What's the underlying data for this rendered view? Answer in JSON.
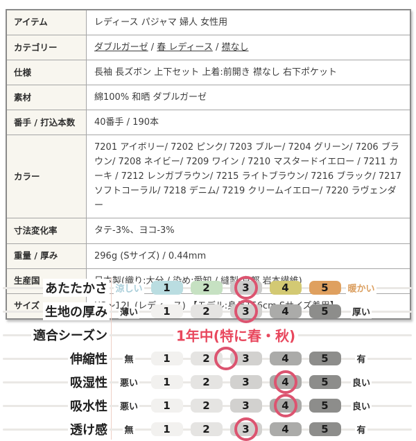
{
  "spec_table": {
    "rows": [
      {
        "label": "アイテム",
        "value": "レディース パジャマ 婦人 女性用"
      },
      {
        "label": "カテゴリー",
        "links": [
          "ダブルガーゼ",
          "春 レディース",
          "襟なし"
        ],
        "separator": " / "
      },
      {
        "label": "仕様",
        "value": "長袖 長ズボン 上下セット 上着:前開き 襟なし 右下ポケット"
      },
      {
        "label": "素材",
        "value": "綿100% 和晒 ダブルガーゼ"
      },
      {
        "label": "番手 / 打込本数",
        "value": "40番手 / 190本"
      },
      {
        "label": "カラー",
        "value": "7201 アイボリー/ 7202 ピンク/ 7203 ブルー/ 7204 グリーン/ 7206 ブラウン/ 7208 ネイビー/ 7209 ワイン / 7210 マスタードイエロー / 7211 カーキ / 7212 レンガブラウン/ 7215 ライトブラウン/ 7216 ブラック/ 7217 ソフトコーラル/ 7218 デニム/ 7219 クリームイエロー/ 7220 ラヴェンダー"
      },
      {
        "label": "寸法変化率",
        "value": "タテ-3%、ヨコ-3%"
      },
      {
        "label": "重量 / 厚み",
        "value": "296g (Sサイズ) / 0.44mm"
      },
      {
        "label": "生産国",
        "value": "日本製(織り:大分 / 染め:愛知 / 縫製:京都 岩本繊維)"
      },
      {
        "label": "サイズ",
        "value": "XS〜12L (レディース) 【モデル:身長156cm Sサイズ着用】"
      }
    ]
  },
  "chart_data": {
    "type": "rating-scale",
    "scale": [
      "1",
      "2",
      "3",
      "4",
      "5"
    ],
    "rows": [
      {
        "label": "あたたかさ",
        "left": "涼しい",
        "right": "暖かい",
        "left_color": "#a7cdd9",
        "right_color": "#db9f60",
        "palette": "warmth",
        "rating": 3
      },
      {
        "label": "生地の厚み",
        "left": "薄い",
        "right": "厚い",
        "palette": "gray",
        "rating": 3
      },
      {
        "label": "適合シーズン",
        "season_text": "1年中(特に春・秋)"
      },
      {
        "label": "伸縮性",
        "left": "無",
        "right": "有",
        "palette": "gray",
        "rating": 2.5
      },
      {
        "label": "吸湿性",
        "left": "悪い",
        "right": "良い",
        "palette": "gray",
        "rating": 4
      },
      {
        "label": "吸水性",
        "left": "悪い",
        "right": "良い",
        "palette": "gray",
        "rating": 4
      },
      {
        "label": "透け感",
        "left": "無",
        "right": "有",
        "palette": "gray",
        "rating": 3
      }
    ],
    "palettes": {
      "warmth": [
        "#badde1",
        "#c6e1c2",
        "#cccccb",
        "#d3c973",
        "#dfa05f"
      ],
      "gray": [
        "#f2f1ef",
        "#e5e4e2",
        "#d2d1cf",
        "#ababa9",
        "#8d8d8b"
      ]
    },
    "colors": {
      "highlight_circle": "#dc5470",
      "season_text": "#e8475d",
      "divider_line": "#eecec5",
      "row_line": "#eae8e5"
    }
  }
}
